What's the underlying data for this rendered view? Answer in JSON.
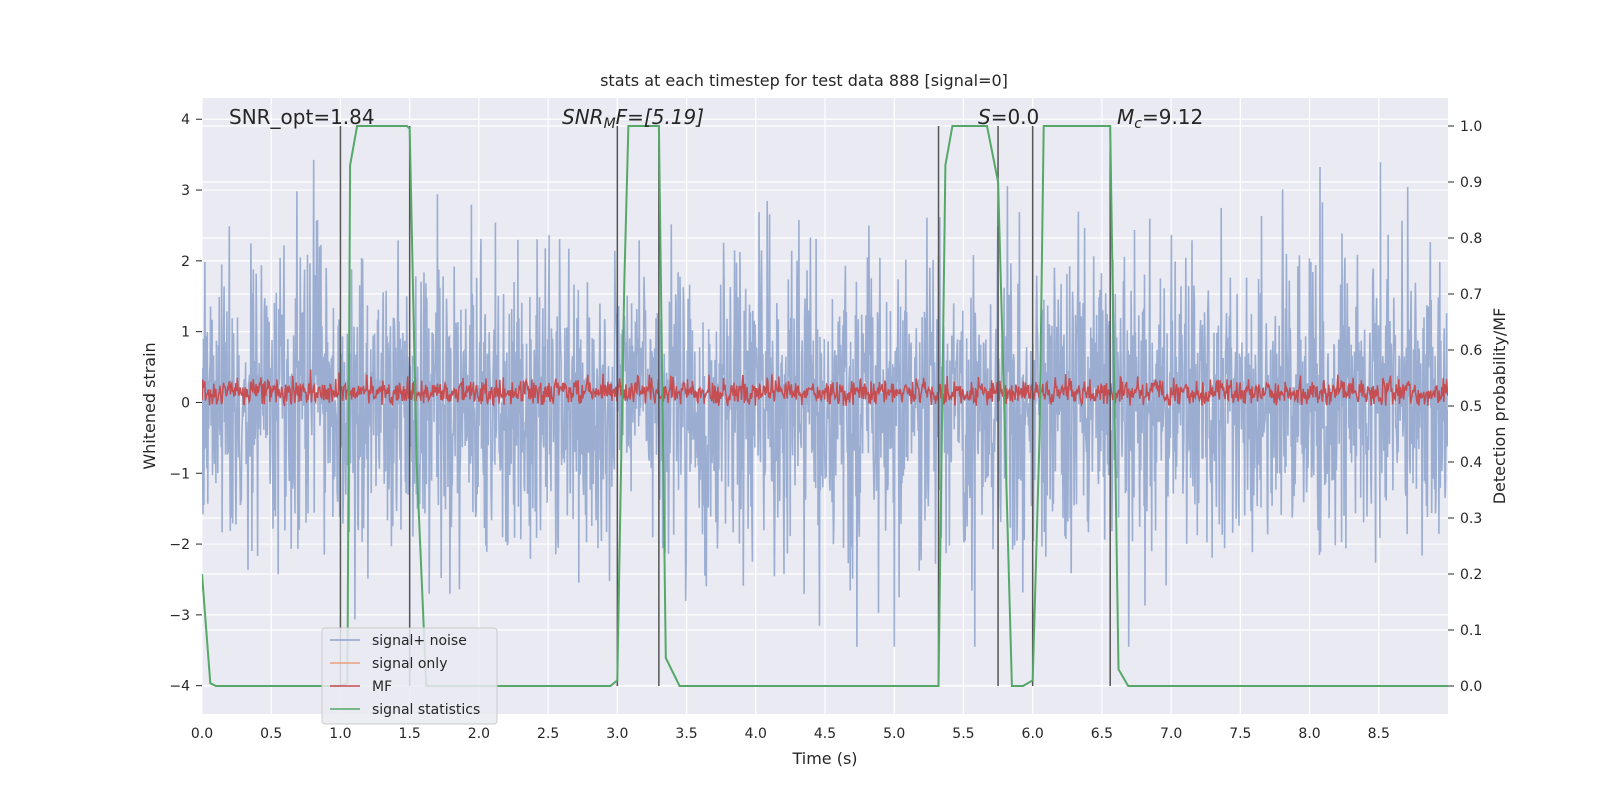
{
  "chart_data": {
    "type": "line",
    "title": "stats at each timestep for test data 888 [signal=0]",
    "xlabel": "Time (s)",
    "ylabel": "Whitened strain",
    "y2label": "Detection probability/MF",
    "xlim": [
      0.0,
      9.0
    ],
    "ylim": [
      -4.4,
      4.3
    ],
    "y2lim": [
      -0.05,
      1.05
    ],
    "xticks": [
      "0.0",
      "0.5",
      "1.0",
      "1.5",
      "2.0",
      "2.5",
      "3.0",
      "3.5",
      "4.0",
      "4.5",
      "5.0",
      "5.5",
      "6.0",
      "6.5",
      "7.0",
      "7.5",
      "8.0",
      "8.5"
    ],
    "yticks": [
      "−4",
      "−3",
      "−2",
      "−1",
      "0",
      "1",
      "2",
      "3",
      "4"
    ],
    "y2ticks": [
      "0.0",
      "0.1",
      "0.2",
      "0.3",
      "0.4",
      "0.5",
      "0.6",
      "0.7",
      "0.8",
      "0.9",
      "1.0"
    ],
    "grid": true,
    "legend_position": "lower-left",
    "annotations": {
      "snr_opt": "SNR_opt=1.84",
      "snr_mf_main": "SNR",
      "snr_mf_sub": "M",
      "snr_mf_rest": "F=[5.19]",
      "s_main": "S",
      "s_rest": "=0.0",
      "mc_main": "M",
      "mc_sub": "c",
      "mc_rest": "=9.12"
    },
    "vertical_lines_x": [
      1.0,
      1.5,
      3.0,
      3.3,
      5.32,
      5.75,
      6.0,
      6.56
    ],
    "series": [
      {
        "name": "signal+ noise",
        "color": "#8da3cc",
        "description_range": [
          -3.4,
          3.4
        ]
      },
      {
        "name": "signal only",
        "color": "#e8a07e",
        "values": []
      },
      {
        "name": "MF",
        "color": "#c44e52",
        "typical_range_y2": [
          0.5,
          0.56
        ]
      },
      {
        "name": "signal statistics",
        "color": "#55a868",
        "x": [
          0.0,
          0.06,
          0.1,
          0.95,
          1.0,
          1.05,
          1.07,
          1.12,
          1.2,
          1.48,
          1.5,
          1.55,
          1.62,
          2.95,
          3.0,
          3.05,
          3.08,
          3.3,
          3.35,
          3.45,
          5.32,
          5.37,
          5.42,
          5.67,
          5.75,
          5.8,
          5.85,
          5.93,
          6.0,
          6.05,
          6.08,
          6.56,
          6.62,
          6.69,
          9.0
        ],
        "values": [
          0.2,
          0.005,
          0.0,
          0.0,
          0.0,
          0.005,
          0.93,
          1.0,
          1.0,
          1.0,
          0.995,
          0.4,
          0.0,
          0.0,
          0.01,
          0.72,
          1.0,
          1.0,
          0.05,
          0.0,
          0.0,
          0.93,
          1.0,
          1.0,
          0.9,
          0.45,
          0.0,
          0.0,
          0.01,
          0.45,
          1.0,
          1.0,
          0.03,
          0.0,
          0.0
        ]
      }
    ]
  }
}
